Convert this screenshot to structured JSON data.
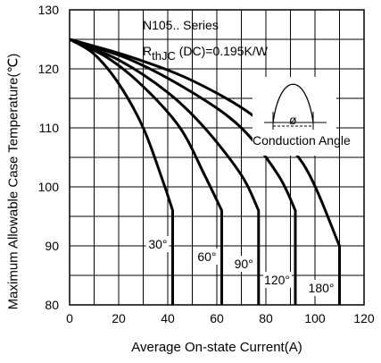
{
  "chart_data": {
    "type": "line",
    "xlabel": "Average On-state Current(A)",
    "ylabel": "Maximum Allowable Case Temperature(℃)",
    "xlim": [
      0,
      120
    ],
    "ylim": [
      80,
      130
    ],
    "xticks": [
      "0",
      "20",
      "40",
      "60",
      "80",
      "100",
      "120"
    ],
    "yticks": [
      "80",
      "90",
      "100",
      "110",
      "120",
      "130"
    ],
    "grid": true,
    "annotation_lines": {
      "series_name": "N105.. Series",
      "rth_prefix": "R",
      "rth_sub": "thJC",
      "rth_suffix": " (DC)=0.195K/W"
    },
    "inset": {
      "phi": "ø",
      "caption": "Conduction  Angle"
    },
    "series": [
      {
        "name": "30°",
        "x": [
          0,
          10,
          20,
          30,
          38,
          42,
          42
        ],
        "y": [
          125,
          122.5,
          117.5,
          110,
          101,
          96,
          80
        ]
      },
      {
        "name": "60°",
        "x": [
          0,
          15,
          30,
          45,
          55,
          62,
          62
        ],
        "y": [
          125,
          122,
          117,
          110,
          102,
          96,
          80
        ]
      },
      {
        "name": "90°",
        "x": [
          0,
          20,
          40,
          55,
          70,
          77,
          77
        ],
        "y": [
          125,
          121.5,
          116,
          110,
          102,
          96,
          80
        ]
      },
      {
        "name": "120°",
        "x": [
          0,
          25,
          50,
          70,
          85,
          92,
          92
        ],
        "y": [
          125,
          121.5,
          116,
          110,
          102,
          96,
          80
        ]
      },
      {
        "name": "180°",
        "x": [
          0,
          25,
          50,
          75,
          95,
          110,
          110
        ],
        "y": [
          125,
          122,
          118,
          112,
          104,
          90,
          80
        ]
      }
    ],
    "curve_labels": [
      "30°",
      "60°",
      "90°",
      "120°",
      "180°"
    ],
    "line_color": "#000000"
  }
}
